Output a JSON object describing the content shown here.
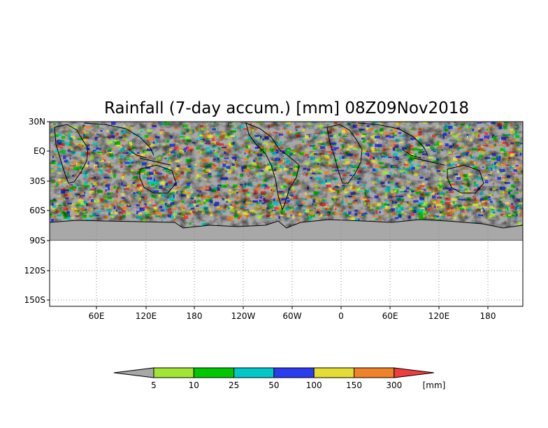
{
  "title": "Rainfall (7-day accum.) [mm] 08Z09Nov2018",
  "axes": {
    "y_ticks": [
      "30N",
      "EQ",
      "30S",
      "60S",
      "90S",
      "120S",
      "150S"
    ],
    "x_ticks": [
      "60E",
      "120E",
      "180",
      "120W",
      "60W",
      "0",
      "60E",
      "120E",
      "180"
    ]
  },
  "colorbar": {
    "levels": [
      "5",
      "10",
      "25",
      "50",
      "100",
      "150",
      "300"
    ],
    "unit": "[mm]",
    "colors": [
      "#a8a8a8",
      "#a0e632",
      "#00c800",
      "#00c8c8",
      "#2a3cf0",
      "#e6dc32",
      "#f08228",
      "#f03c3c"
    ]
  },
  "map": {
    "land_color": "#a8a8a8",
    "coastline_color": "#000000",
    "grid": "dotted"
  }
}
